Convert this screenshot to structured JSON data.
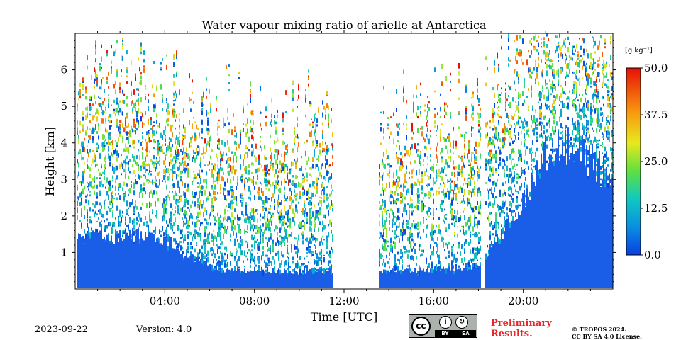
{
  "chart_data": {
    "type": "heatmap",
    "title": "Water vapour mixing ratio of arielle at Antarctica",
    "xlabel": "Time [UTC]",
    "ylabel": "Height [km]",
    "x_ticks": [
      "04:00",
      "08:00",
      "12:00",
      "16:00",
      "20:00"
    ],
    "x_tick_hours": [
      4,
      8,
      12,
      16,
      20
    ],
    "xlim_hours": [
      0,
      24
    ],
    "y_ticks": [
      1,
      2,
      3,
      4,
      5,
      6
    ],
    "ylim_km": [
      0,
      7
    ],
    "colorbar": {
      "unit": "[g kg⁻¹]",
      "ticks": [
        "0.0",
        "12.5",
        "25.0",
        "37.5",
        "50.0"
      ],
      "tick_values": [
        0,
        12.5,
        25,
        37.5,
        50
      ],
      "range": [
        0,
        50
      ],
      "colormap": "jet"
    },
    "missing_data_hours": [
      [
        11.5,
        13.5
      ],
      [
        18.1,
        18.3
      ]
    ],
    "dense_layer_top_km": [
      [
        0,
        1.3
      ],
      [
        1,
        1.5
      ],
      [
        2,
        1.4
      ],
      [
        3,
        1.5
      ],
      [
        4,
        1.4
      ],
      [
        5,
        0.9
      ],
      [
        6,
        0.6
      ],
      [
        7,
        0.5
      ],
      [
        8,
        0.5
      ],
      [
        9,
        0.5
      ],
      [
        10,
        0.45
      ],
      [
        11,
        0.5
      ],
      [
        13.5,
        0.5
      ],
      [
        14,
        0.5
      ],
      [
        15,
        0.5
      ],
      [
        16,
        0.55
      ],
      [
        17,
        0.55
      ],
      [
        18,
        0.6
      ],
      [
        19,
        1.5
      ],
      [
        20,
        2.5
      ],
      [
        21,
        3.8
      ],
      [
        22,
        4.0
      ],
      [
        23,
        3.5
      ],
      [
        24,
        3.0
      ]
    ]
  },
  "footer": {
    "date": "2023-09-22",
    "version": "Version: 4.0",
    "license_badge": "cc BY SA",
    "license_left": "BY",
    "license_right": "SA",
    "preliminary": "Preliminary\nResults.",
    "copyright": "© TROPOS 2024.\nCC BY SA 4.0 License."
  },
  "colors": {
    "low": "#1050e0",
    "mid": "#30c0a0",
    "high": "#e02010"
  }
}
